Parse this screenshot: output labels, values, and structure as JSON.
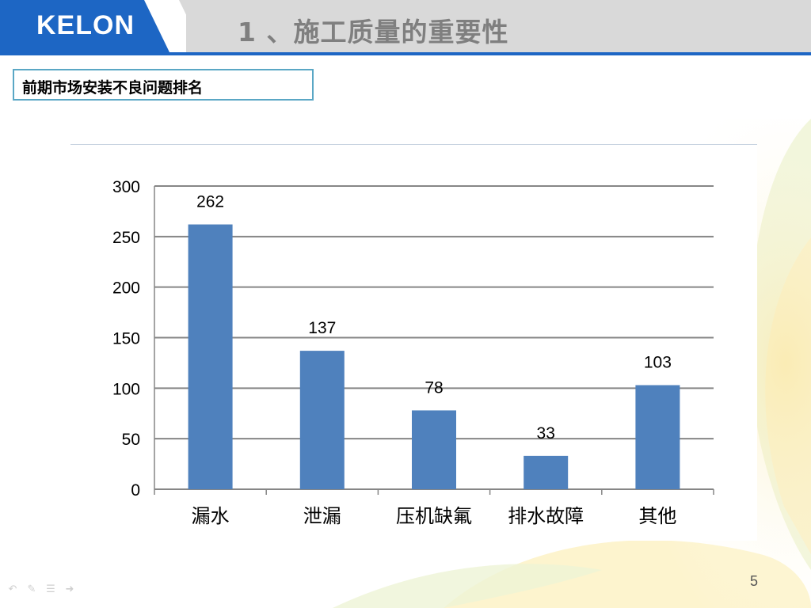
{
  "header": {
    "logo_text": "KELON",
    "title": "1 、施工质量的重要性"
  },
  "section": {
    "label": "前期市场安装不良问题排名"
  },
  "colors": {
    "bar": "#4f81bd",
    "header_blue": "#1d66c4",
    "header_gray": "#d9d9d9",
    "box_border": "#5aa7c5"
  },
  "chart_data": {
    "type": "bar",
    "categories": [
      "漏水",
      "泄漏",
      "压机缺氟",
      "排水故障",
      "其他"
    ],
    "values": [
      262,
      137,
      78,
      33,
      103
    ],
    "title": "",
    "xlabel": "",
    "ylabel": "",
    "ylim": [
      0,
      300
    ],
    "yticks": [
      0,
      50,
      100,
      150,
      200,
      250,
      300
    ],
    "grid": true,
    "data_labels": true
  },
  "footer": {
    "page_number": "5",
    "nav_icons": [
      "back-icon",
      "pen-icon",
      "menu-icon",
      "forward-icon"
    ]
  }
}
